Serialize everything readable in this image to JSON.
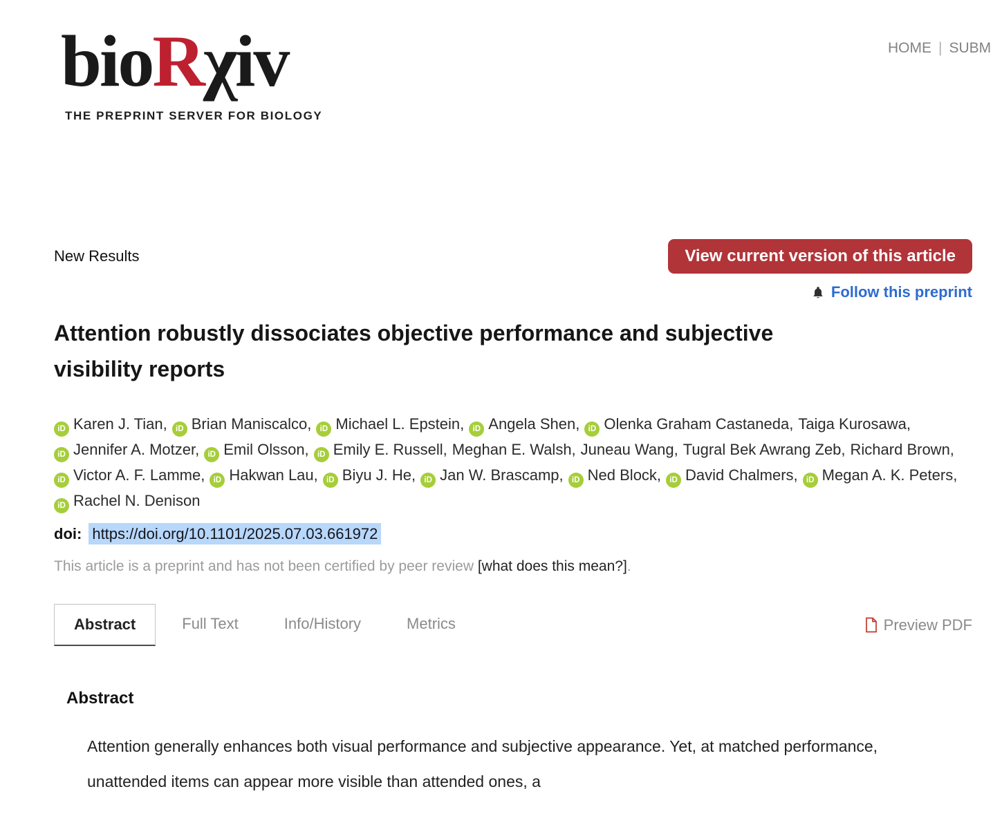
{
  "brand": {
    "logo_bio": "bio",
    "logo_r": "R",
    "logo_xiv": "χiv",
    "tagline": "THE PREPRINT SERVER FOR BIOLOGY"
  },
  "nav": {
    "home": "HOME",
    "separator": "|",
    "submit": "SUBM"
  },
  "article": {
    "section_label": "New Results",
    "view_button": "View current version of this article",
    "follow_link": "Follow this preprint",
    "title": "Attention robustly dissociates objective performance and subjective visibility reports",
    "orcid_icon_text": "iD",
    "authors": [
      {
        "name": "Karen J. Tian",
        "orcid": true
      },
      {
        "name": "Brian Maniscalco",
        "orcid": true
      },
      {
        "name": "Michael L. Epstein",
        "orcid": true
      },
      {
        "name": "Angela Shen",
        "orcid": true
      },
      {
        "name": "Olenka Graham Castaneda",
        "orcid": true
      },
      {
        "name": "Taiga Kurosawa",
        "orcid": false
      },
      {
        "name": "Jennifer A. Motzer",
        "orcid": true
      },
      {
        "name": "Emil Olsson",
        "orcid": true
      },
      {
        "name": "Emily E. Russell",
        "orcid": true
      },
      {
        "name": "Meghan E. Walsh",
        "orcid": false
      },
      {
        "name": "Juneau Wang",
        "orcid": false
      },
      {
        "name": "Tugral Bek Awrang Zeb",
        "orcid": false
      },
      {
        "name": "Richard Brown",
        "orcid": false
      },
      {
        "name": "Victor A. F. Lamme",
        "orcid": true
      },
      {
        "name": "Hakwan Lau",
        "orcid": true
      },
      {
        "name": "Biyu J. He",
        "orcid": true
      },
      {
        "name": "Jan W. Brascamp",
        "orcid": true
      },
      {
        "name": "Ned Block",
        "orcid": true
      },
      {
        "name": "David Chalmers",
        "orcid": true
      },
      {
        "name": "Megan A. K. Peters",
        "orcid": true
      },
      {
        "name": "Rachel N. Denison",
        "orcid": true
      }
    ],
    "doi_label": "doi:",
    "doi_url": "https://doi.org/10.1101/2025.07.03.661972",
    "preprint_notice": "This article is a preprint and has not been certified by peer review ",
    "preprint_notice_link": "[what does this mean?]",
    "preprint_notice_end": "."
  },
  "tabs": {
    "items": [
      {
        "label": "Abstract",
        "active": true
      },
      {
        "label": "Full Text",
        "active": false
      },
      {
        "label": "Info/History",
        "active": false
      },
      {
        "label": "Metrics",
        "active": false
      }
    ],
    "preview_pdf": "Preview PDF"
  },
  "abstract": {
    "heading": "Abstract",
    "text": "Attention generally enhances both visual performance and subjective appearance. Yet, at matched performance, unattended items can appear more visible than attended ones, a"
  },
  "colors": {
    "brand_red": "#bd2130",
    "button_red": "#b13439",
    "link_blue": "#2e6bd0",
    "orcid_green": "#a6ce39",
    "selection_blue": "#b7d7fb",
    "pdf_icon_red": "#c0392b"
  }
}
